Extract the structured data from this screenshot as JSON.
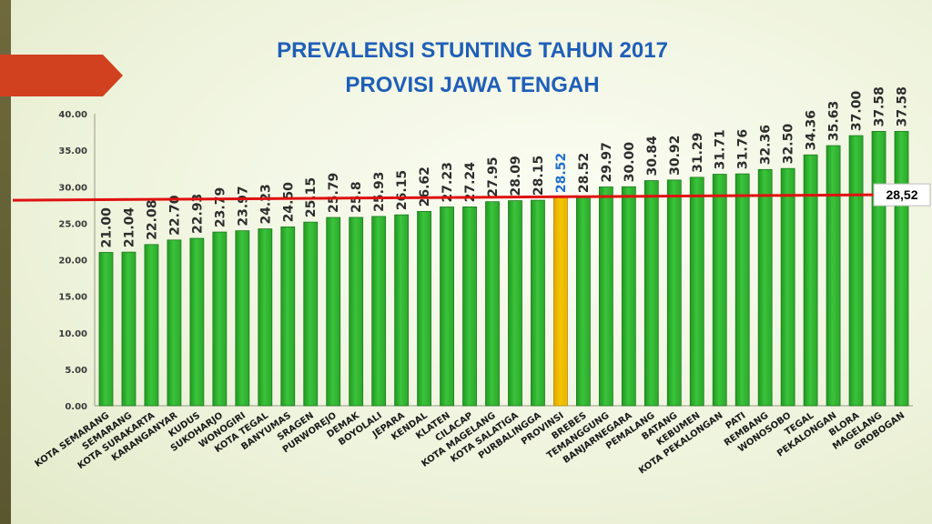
{
  "chart_data": {
    "type": "bar",
    "title": [
      "PREVALENSI STUNTING TAHUN 2017",
      "PROVISI JAWA TENGAH"
    ],
    "xlabel": "",
    "ylabel": "",
    "ylim": [
      0,
      40
    ],
    "yticks": [
      "0.00",
      "5.00",
      "10.00",
      "15.00",
      "20.00",
      "25.00",
      "30.00",
      "35.00",
      "40.00"
    ],
    "grid": false,
    "categories": [
      "KOTA SEMARANG",
      "SEMARANG",
      "KOTA SURAKARTA",
      "KARANGANYAR",
      "KUDUS",
      "SUKOHARJO",
      "WONOGIRI",
      "KOTA TEGAL",
      "BANYUMAS",
      "SRAGEN",
      "PURWOREJO",
      "DEMAK",
      "BOYOLALI",
      "JEPARA",
      "KENDAL",
      "KLATEN",
      "CILACAP",
      "KOTA MAGELANG",
      "KOTA SALATIGA",
      "PURBALINGGA",
      "PROVINSI",
      "BREBES",
      "TEMANGGUNG",
      "BANJARNEGARA",
      "PEMALANG",
      "BATANG",
      "KEBUMEN",
      "KOTA PEKALONGAN",
      "PATI",
      "REMBANG",
      "WONOSOBO",
      "TEGAL",
      "PEKALONGAN",
      "BLORA",
      "MAGELANG",
      "GROBOGAN"
    ],
    "values": [
      21.0,
      21.04,
      22.08,
      22.7,
      22.93,
      23.79,
      23.97,
      24.23,
      24.5,
      25.15,
      25.79,
      25.8,
      25.93,
      26.15,
      26.62,
      27.23,
      27.24,
      27.95,
      28.09,
      28.15,
      28.52,
      28.52,
      29.97,
      30.0,
      30.84,
      30.92,
      31.29,
      31.71,
      31.76,
      32.36,
      32.5,
      34.36,
      35.63,
      37.0,
      37.58,
      37.58
    ],
    "value_labels": [
      "21.00",
      "21.04",
      "22.08",
      "22.70",
      "22.93",
      "23.79",
      "23.97",
      "24.23",
      "24.50",
      "25.15",
      "25.79",
      "25.8",
      "25.93",
      "26.15",
      "26.62",
      "27.23",
      "27.24",
      "27.95",
      "28.09",
      "28.15",
      "28.52",
      "28.52",
      "29.97",
      "30.00",
      "30.84",
      "30.92",
      "31.29",
      "31.71",
      "31.76",
      "32.36",
      "32.50",
      "34.36",
      "35.63",
      "37.00",
      "37.58",
      "37.58"
    ],
    "highlight_category": "PROVINSI",
    "reference_line": {
      "value": 28.52,
      "label": "28,52"
    },
    "colors": {
      "bar": "#3cc33c",
      "bar_edge": "#1f7a1f",
      "highlight_bar": "#f5c400",
      "highlight_edge": "#b08c00",
      "highlight_label": "#1f6fd0",
      "reference_line": "#e01010",
      "title": "#1f5fb8"
    }
  }
}
